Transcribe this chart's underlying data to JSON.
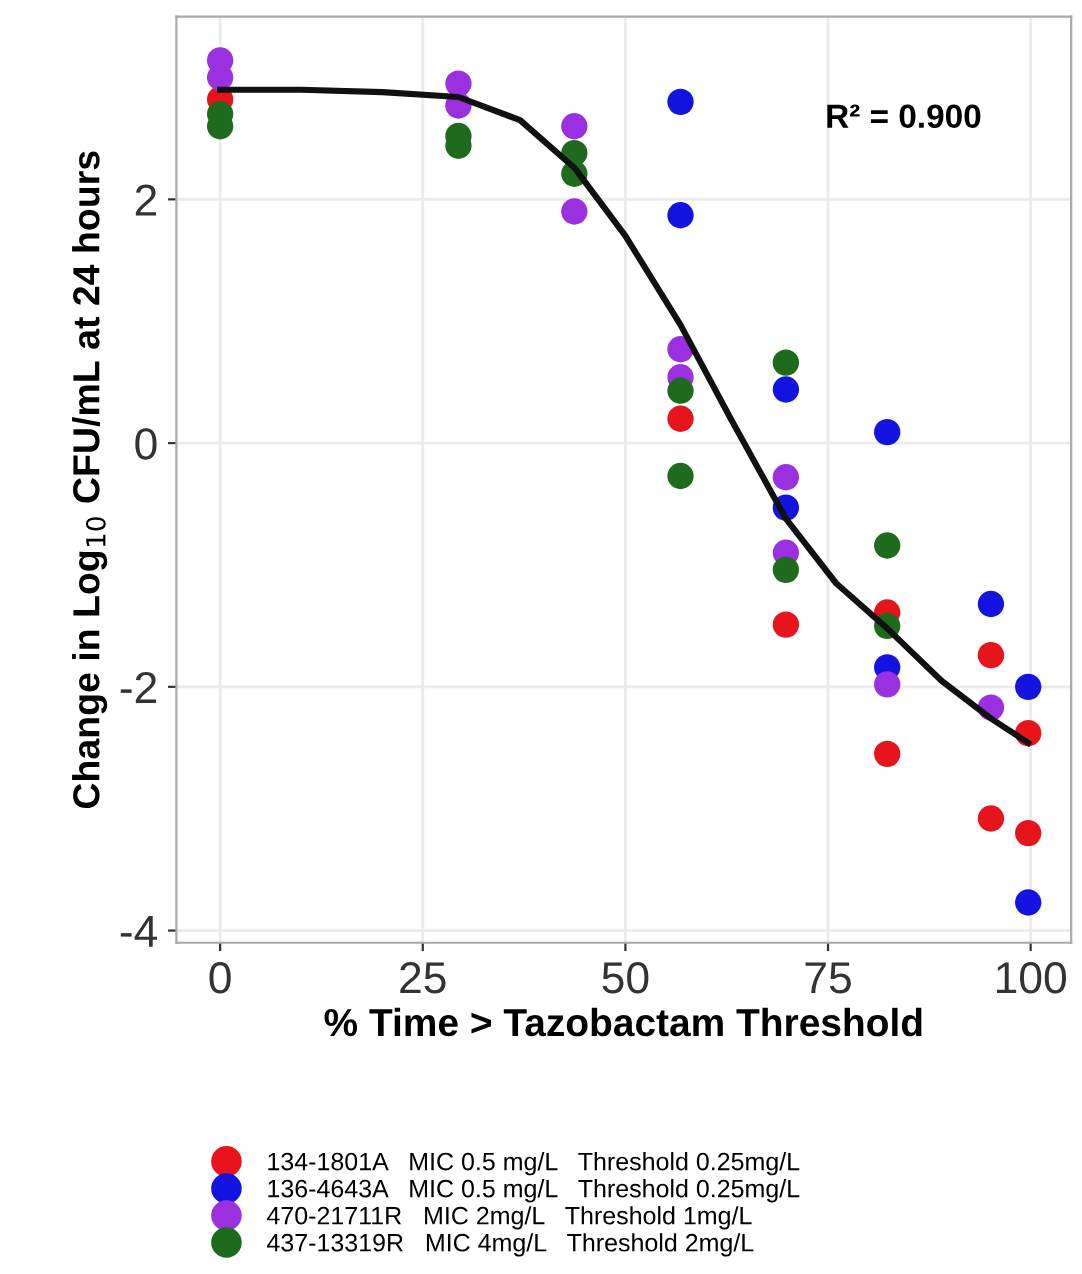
{
  "chart_data": {
    "type": "scatter",
    "xlabel": "% Time > Tazobactam Threshold",
    "ylabel": "Change in Log$_{10}$ CFU/mL at 24 hours",
    "xlim": [
      -5.4,
      105
    ],
    "ylim": [
      -4.1,
      3.5
    ],
    "xticks": [
      0,
      25,
      50,
      75,
      100
    ],
    "yticks": [
      -4,
      -2,
      0,
      2
    ],
    "grid": true,
    "legend": "bottom",
    "marker": "circle",
    "annotations": [
      "R² = 0.900"
    ],
    "series": [
      {
        "name": "134-1801A   MIC 0.5 mg/L   Threshold 0.25mg/L",
        "color": "#e8141c",
        "x": [
          0,
          56.8,
          69.8,
          82.3,
          82.3,
          95.1,
          95.1,
          99.7,
          99.7
        ],
        "values": [
          2.82,
          0.2,
          -1.49,
          -1.39,
          -2.55,
          -1.74,
          -3.08,
          -2.38,
          -3.2
        ]
      },
      {
        "name": "136-4643A   MIC 0.5 mg/L   Threshold 0.25mg/L",
        "color": "#1414e0",
        "x": [
          56.8,
          56.8,
          69.8,
          69.8,
          82.3,
          82.3,
          95.1,
          99.7,
          99.7
        ],
        "values": [
          2.8,
          1.87,
          0.44,
          -0.53,
          0.09,
          -1.84,
          -1.32,
          -2.0,
          -3.77
        ]
      },
      {
        "name": "470-21711R   MIC 2mg/L   Threshold 1mg/L",
        "color": "#9b30e0",
        "x": [
          0,
          0,
          29.4,
          29.4,
          43.7,
          43.7,
          56.8,
          56.8,
          69.8,
          69.8,
          82.3,
          95.1
        ],
        "values": [
          3.14,
          3.0,
          2.95,
          2.77,
          2.6,
          1.9,
          0.77,
          0.54,
          -0.28,
          -0.9,
          -1.98,
          -2.17
        ]
      },
      {
        "name": "437-13319R   MIC 4mg/L   Threshold 2mg/L",
        "color": "#1e6b1e",
        "x": [
          0,
          0,
          29.4,
          29.4,
          43.7,
          43.7,
          56.8,
          56.8,
          69.8,
          69.8,
          82.3,
          82.3
        ],
        "values": [
          2.6,
          2.7,
          2.52,
          2.44,
          2.38,
          2.21,
          0.43,
          -0.27,
          0.66,
          -1.04,
          -0.84,
          -1.5
        ]
      },
      {
        "type": "line",
        "color": "#111111",
        "marker": "none",
        "line_style": "solid",
        "x": [
          0,
          10,
          20,
          29.4,
          37,
          43.7,
          50,
          56.8,
          63,
          69.8,
          76,
          82.3,
          89,
          95.1,
          99.7
        ],
        "values": [
          2.9,
          2.9,
          2.88,
          2.84,
          2.65,
          2.26,
          1.7,
          0.97,
          0.2,
          -0.62,
          -1.15,
          -1.52,
          -1.95,
          -2.26,
          -2.46
        ]
      }
    ]
  }
}
